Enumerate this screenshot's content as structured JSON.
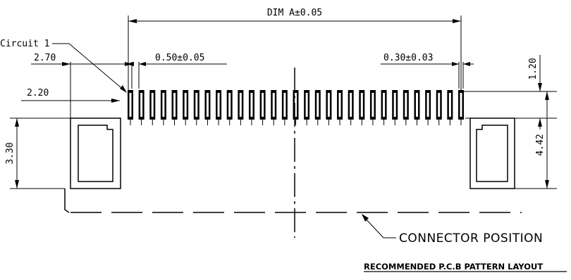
{
  "labels": {
    "dim_a": "DIM A±0.05",
    "circuit_1": "Circuit 1",
    "dim_2_70": "2.70",
    "dim_2_20": "2.20",
    "pitch": "0.50±0.05",
    "pad_width": "0.30±0.03",
    "dim_1_20": "1.20",
    "dim_3_30": "3.30",
    "dim_4_42": "4.42",
    "connector_position": "CONNECTOR POSITION",
    "layout_title": "RECOMMENDED P.C.B PATTERN LAYOUT"
  },
  "pattern": {
    "pad_count": 31
  }
}
